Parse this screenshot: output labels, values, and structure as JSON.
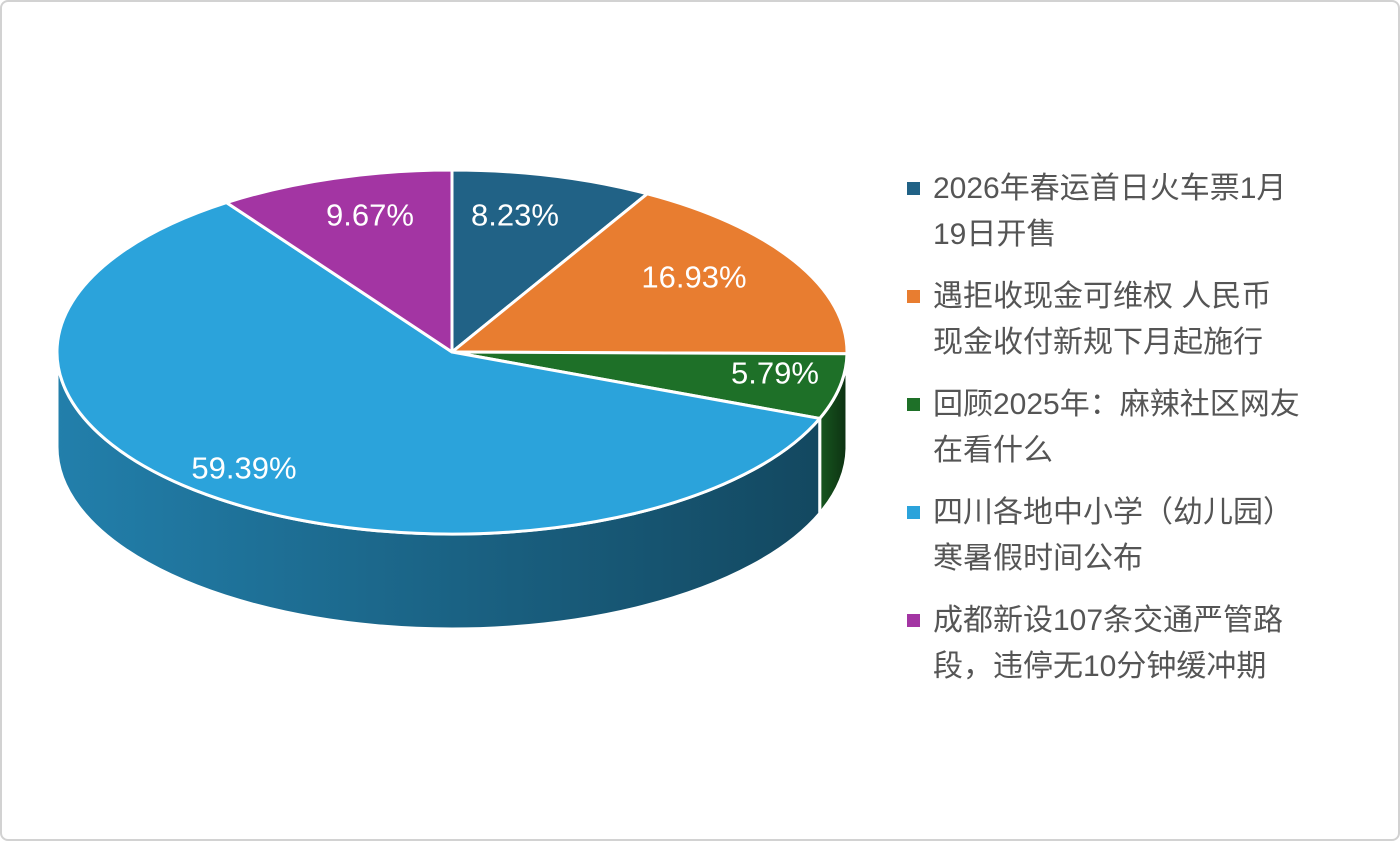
{
  "page": {
    "background": "#ffffff",
    "border_color": "#d2d2d2"
  },
  "chart_data": {
    "type": "pie",
    "projection": "3d",
    "direction": "clockwise",
    "start_angle_deg": 0,
    "legend_position": "right",
    "label_color": "#ffffff",
    "separator_color": "#ffffff",
    "slices": [
      {
        "label": "2026年春运首日火车票1月19日开售",
        "value": 8.23,
        "display": "8.23%",
        "color": "#216286"
      },
      {
        "label": "遇拒收现金可维权 人民币现金收付新规下月起施行",
        "value": 16.93,
        "display": "16.93%",
        "color": "#E87D30"
      },
      {
        "label": "回顾2025年：麻辣社区网友在看什么",
        "value": 5.79,
        "display": "5.79%",
        "color": "#1E7028"
      },
      {
        "label": "四川各地中小学（幼儿园）寒暑假时间公布",
        "value": 59.39,
        "display": "59.39%",
        "color": "#2BA3DB"
      },
      {
        "label": "成都新设107条交通严管路段，违停无10分钟缓冲期",
        "value": 9.67,
        "display": "9.67%",
        "color": "#A335A3"
      }
    ]
  },
  "legend": {
    "text_color": "#555555",
    "items": [
      {
        "lines": [
          "2026年春运首日火车票1月",
          "19日开售"
        ]
      },
      {
        "lines": [
          "遇拒收现金可维权 人民币",
          "现金收付新规下月起施行"
        ]
      },
      {
        "lines": [
          "回顾2025年：麻辣社区网友",
          "在看什么"
        ]
      },
      {
        "lines": [
          "四川各地中小学（幼儿园）",
          "寒暑假时间公布"
        ]
      },
      {
        "lines": [
          "成都新设107条交通严管路",
          "段，违停无10分钟缓冲期"
        ]
      }
    ]
  }
}
